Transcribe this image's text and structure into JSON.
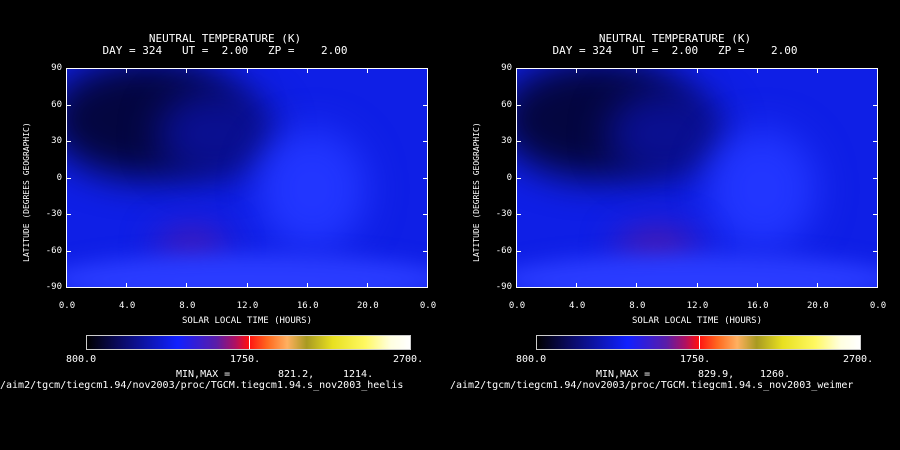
{
  "chart_data": [
    {
      "type": "heatmap",
      "title": "NEUTRAL TEMPERATURE (K)",
      "subtitle": "DAY = 324   UT =  2.00   ZP =    2.00",
      "xlabel": "SOLAR LOCAL TIME (HOURS)",
      "ylabel": "LATITUDE (DEGREES GEOGRAPHIC)",
      "xlim": [
        0,
        24
      ],
      "ylim": [
        -90,
        90
      ],
      "x_ticks": [
        "0.0",
        "4.0",
        "8.0",
        "12.0",
        "16.0",
        "20.0",
        "0.0"
      ],
      "y_ticks": [
        "90",
        "60",
        "30",
        "0",
        "-30",
        "-60",
        "-90"
      ],
      "colorbar": {
        "min": "800.0",
        "mid": "1750.",
        "max": "2700.",
        "range": [
          800,
          2700
        ]
      },
      "minmax_label": "MIN,MAX =",
      "min_value": "821.2,",
      "max_value": "1214.",
      "source_path": "/aim2/tgcm/tiegcm1.94/nov2003/proc/TGCM.tiegcm1.94.s_nov2003_heelis"
    },
    {
      "type": "heatmap",
      "title": "NEUTRAL TEMPERATURE (K)",
      "subtitle": "DAY = 324   UT =  2.00   ZP =    2.00",
      "xlabel": "SOLAR LOCAL TIME (HOURS)",
      "ylabel": "LATITUDE (DEGREES GEOGRAPHIC)",
      "xlim": [
        0,
        24
      ],
      "ylim": [
        -90,
        90
      ],
      "x_ticks": [
        "0.0",
        "4.0",
        "8.0",
        "12.0",
        "16.0",
        "20.0",
        "0.0"
      ],
      "y_ticks": [
        "90",
        "60",
        "30",
        "0",
        "-30",
        "-60",
        "-90"
      ],
      "colorbar": {
        "min": "800.0",
        "mid": "1750.",
        "max": "2700.",
        "range": [
          800,
          2700
        ]
      },
      "minmax_label": "MIN,MAX =",
      "min_value": "829.9,",
      "max_value": "1260.",
      "source_path": "/aim2/tgcm/tiegcm1.94/nov2003/proc/TGCM.tiegcm1.94.s_nov2003_weimer"
    }
  ],
  "colors": {
    "background": "#000000",
    "field_base": "#0f1fe6",
    "cold": "#05064a",
    "warm": "#2a3cff",
    "hot": "#6a1ca0"
  }
}
